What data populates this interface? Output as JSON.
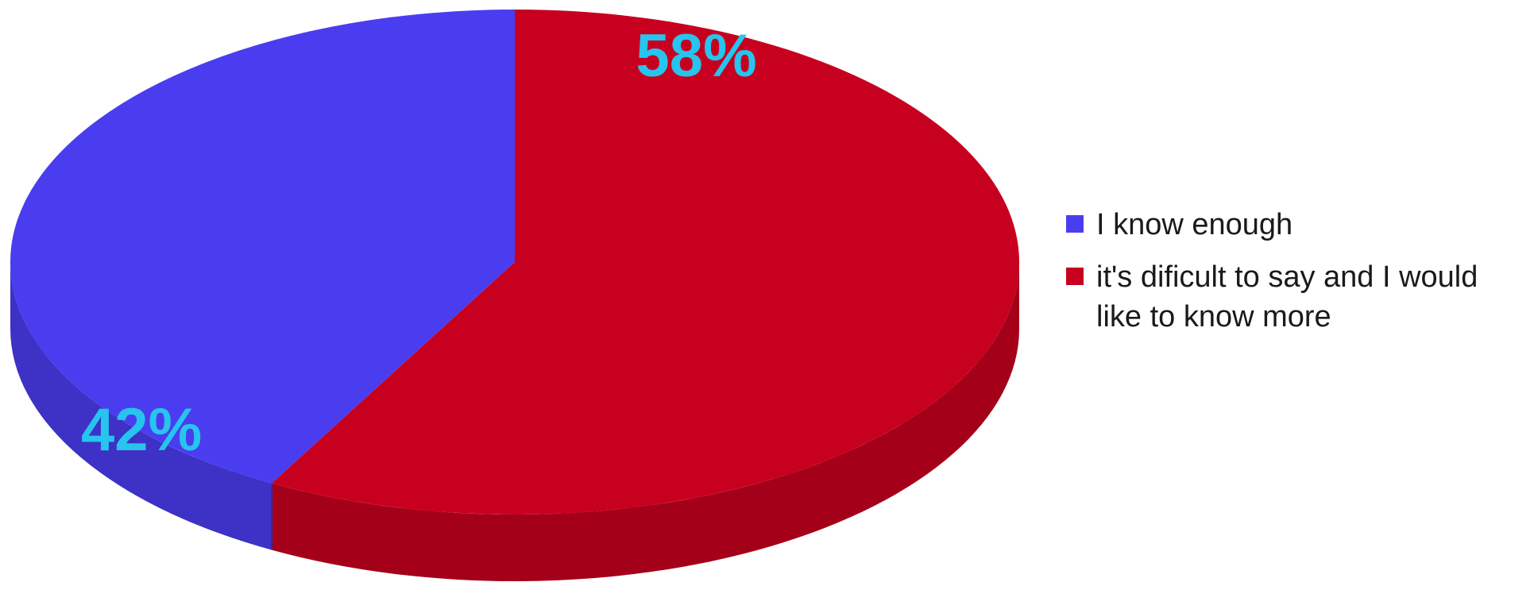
{
  "chart_data": {
    "type": "pie",
    "style": "3d",
    "title": "",
    "categories": [
      "I know enough",
      "it's dificult to say and I would like to know more"
    ],
    "values": [
      42,
      58
    ],
    "data_labels": [
      "42%",
      "58%"
    ],
    "colors": [
      "#4a3df0",
      "#c8001f"
    ],
    "label_color": "#27c4ee",
    "legend_position": "right"
  }
}
